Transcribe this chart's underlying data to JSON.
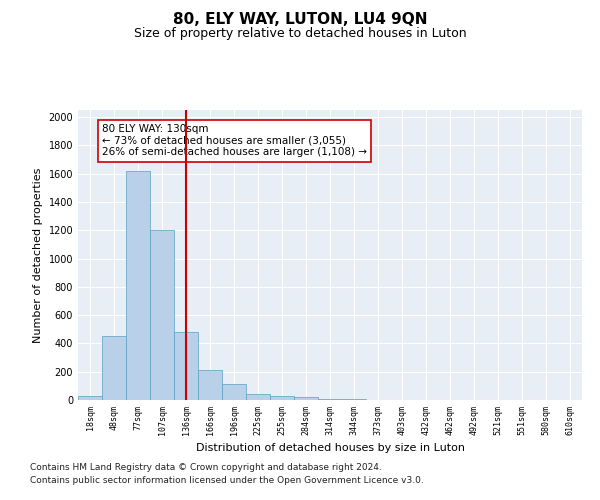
{
  "title": "80, ELY WAY, LUTON, LU4 9QN",
  "subtitle": "Size of property relative to detached houses in Luton",
  "xlabel": "Distribution of detached houses by size in Luton",
  "ylabel": "Number of detached properties",
  "categories": [
    "18sqm",
    "48sqm",
    "77sqm",
    "107sqm",
    "136sqm",
    "166sqm",
    "196sqm",
    "225sqm",
    "255sqm",
    "284sqm",
    "314sqm",
    "344sqm",
    "373sqm",
    "403sqm",
    "432sqm",
    "462sqm",
    "492sqm",
    "521sqm",
    "551sqm",
    "580sqm",
    "610sqm"
  ],
  "values": [
    30,
    450,
    1620,
    1200,
    480,
    210,
    115,
    40,
    30,
    20,
    10,
    5,
    3,
    2,
    1,
    1,
    0,
    0,
    0,
    0,
    0
  ],
  "bar_color": "#b8d0e8",
  "bar_edge_color": "#5a9ec4",
  "vline_x_index": 4,
  "vline_color": "#cc0000",
  "annotation_text": "80 ELY WAY: 130sqm\n← 73% of detached houses are smaller (3,055)\n26% of semi-detached houses are larger (1,108) →",
  "annotation_box_color": "#ffffff",
  "annotation_box_edge_color": "#cc0000",
  "ylim": [
    0,
    2050
  ],
  "yticks": [
    0,
    200,
    400,
    600,
    800,
    1000,
    1200,
    1400,
    1600,
    1800,
    2000
  ],
  "background_color": "#e8eef5",
  "footer_line1": "Contains HM Land Registry data © Crown copyright and database right 2024.",
  "footer_line2": "Contains public sector information licensed under the Open Government Licence v3.0.",
  "title_fontsize": 11,
  "subtitle_fontsize": 9,
  "annotation_fontsize": 7.5,
  "footer_fontsize": 6.5,
  "ylabel_fontsize": 8,
  "xlabel_fontsize": 8,
  "ytick_fontsize": 7,
  "xtick_fontsize": 6
}
